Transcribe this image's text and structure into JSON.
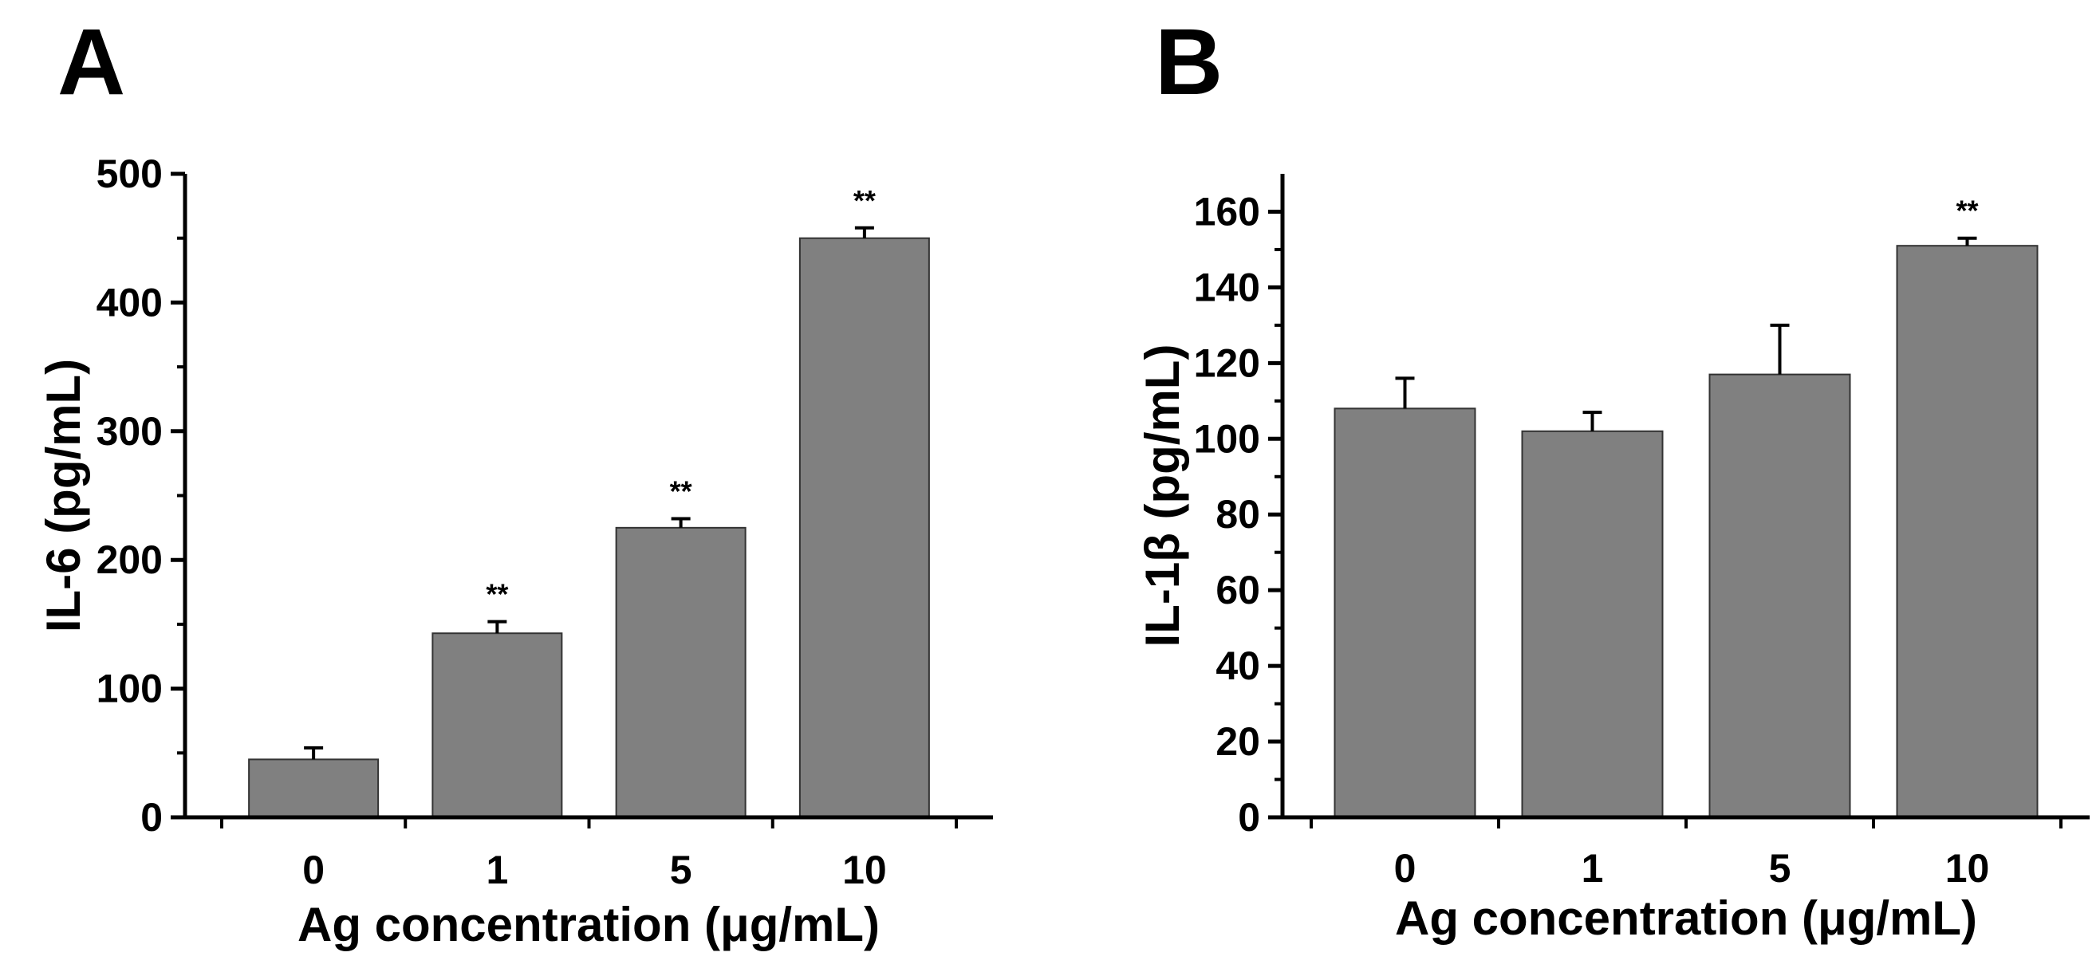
{
  "figure": {
    "background": "#ffffff",
    "bar_color": "#808080",
    "bar_edge_color": "#333333",
    "axis_color": "#000000"
  },
  "chart_data": [
    {
      "panel": "A",
      "type": "bar",
      "title": "",
      "xlabel": "Ag concentration (μg/mL)",
      "ylabel": "IL-6 (pg/mL)",
      "categories": [
        "0",
        "1",
        "5",
        "10"
      ],
      "values": [
        45,
        143,
        225,
        450
      ],
      "errors": [
        9,
        9,
        7,
        8
      ],
      "significance": [
        "",
        "**",
        "**",
        "**"
      ],
      "ylim": [
        0,
        500
      ],
      "yticks": [
        0,
        100,
        200,
        300,
        400,
        500
      ],
      "minor_step": 50,
      "grid": false,
      "legend": "none"
    },
    {
      "panel": "B",
      "type": "bar",
      "title": "",
      "xlabel": "Ag concentration (μg/mL)",
      "ylabel": "IL-1β (pg/mL)",
      "categories": [
        "0",
        "1",
        "5",
        "10"
      ],
      "values": [
        108,
        102,
        117,
        151
      ],
      "errors": [
        8,
        5,
        13,
        2
      ],
      "significance": [
        "",
        "",
        "",
        "**"
      ],
      "ylim": [
        0,
        170
      ],
      "yticks": [
        0,
        20,
        40,
        60,
        80,
        100,
        120,
        140,
        160
      ],
      "minor_step": 10,
      "grid": false,
      "legend": "none"
    }
  ]
}
